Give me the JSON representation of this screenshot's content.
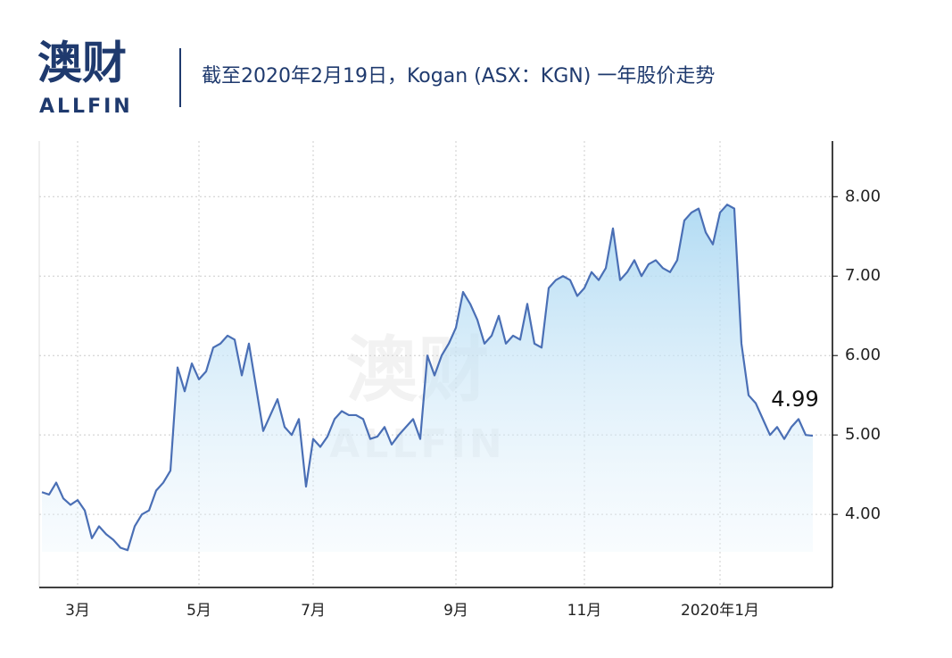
{
  "logo": {
    "name": "澳财",
    "sub": "ALLFIN"
  },
  "chart_data": {
    "type": "line",
    "title": "截至2020年2月19日，Kogan (ASX：KGN) 一年股价走势",
    "categories": [
      null,
      null,
      null,
      null,
      null,
      "3月",
      null,
      null,
      null,
      null,
      null,
      null,
      null,
      null,
      null,
      null,
      null,
      null,
      null,
      null,
      null,
      null,
      "5月",
      null,
      null,
      null,
      null,
      null,
      null,
      null,
      null,
      null,
      null,
      null,
      null,
      null,
      null,
      null,
      "7月",
      null,
      null,
      null,
      null,
      null,
      null,
      null,
      null,
      null,
      null,
      null,
      null,
      null,
      null,
      null,
      null,
      null,
      null,
      null,
      "9月",
      null,
      null,
      null,
      null,
      null,
      null,
      null,
      null,
      null,
      null,
      null,
      null,
      null,
      null,
      null,
      null,
      null,
      "11月",
      null,
      null,
      null,
      null,
      null,
      null,
      null,
      null,
      null,
      null,
      null,
      null,
      null,
      null,
      null,
      null,
      null,
      null,
      "2020年1月",
      null,
      null,
      null,
      null,
      null,
      null,
      null,
      null,
      null,
      null,
      null,
      null,
      null
    ],
    "series": [
      {
        "color": "#4a6fb5",
        "values": [
          4.28,
          4.25,
          4.4,
          4.2,
          4.12,
          4.18,
          4.05,
          3.7,
          3.85,
          3.75,
          3.68,
          3.58,
          3.55,
          3.85,
          4.0,
          4.05,
          4.3,
          4.4,
          4.55,
          5.85,
          5.55,
          5.9,
          5.7,
          5.8,
          6.1,
          6.15,
          6.25,
          6.2,
          5.75,
          6.15,
          5.6,
          5.05,
          5.25,
          5.45,
          5.1,
          5.0,
          5.2,
          4.35,
          4.95,
          4.85,
          4.98,
          5.2,
          5.3,
          5.25,
          5.25,
          5.2,
          4.95,
          4.98,
          5.1,
          4.88,
          5.0,
          5.1,
          5.2,
          4.95,
          6.0,
          5.75,
          6.0,
          6.15,
          6.35,
          6.8,
          6.65,
          6.45,
          6.15,
          6.25,
          6.5,
          6.15,
          6.25,
          6.2,
          6.65,
          6.15,
          6.1,
          6.85,
          6.95,
          7.0,
          6.95,
          6.75,
          6.85,
          7.05,
          6.95,
          7.1,
          7.6,
          6.95,
          7.05,
          7.2,
          7.0,
          7.15,
          7.2,
          7.1,
          7.05,
          7.2,
          7.7,
          7.8,
          7.85,
          7.55,
          7.4,
          7.8,
          7.9,
          7.85,
          6.15,
          5.5,
          5.4,
          5.2,
          5.0,
          5.1,
          4.95,
          5.1,
          5.2,
          5.0,
          4.99
        ]
      }
    ],
    "end_label": 4.99,
    "ylim": [
      3.08,
      8.7
    ],
    "yticks": [
      {
        "value": 4,
        "label": "4.00"
      },
      {
        "value": 5,
        "label": "5.00"
      },
      {
        "value": 6,
        "label": "6.00"
      },
      {
        "value": 7,
        "label": "7.00"
      },
      {
        "value": 8,
        "label": "8.00"
      }
    ],
    "grid": true
  }
}
